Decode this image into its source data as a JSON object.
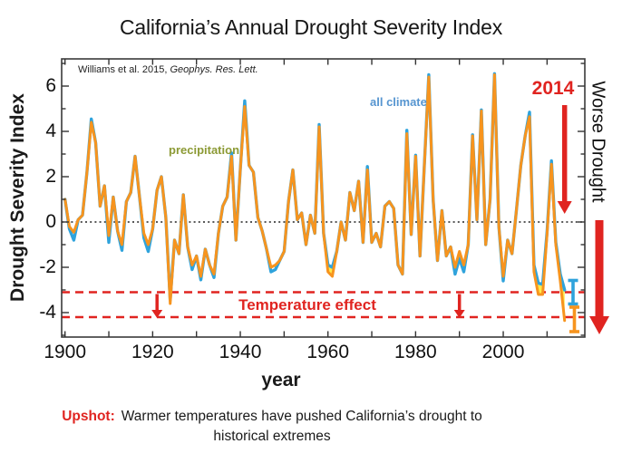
{
  "figure": {
    "title": "California’s Annual Drought Severity Index",
    "citation_plain": "Williams et al. 2015, ",
    "citation_italic": "Geophys. Res. Lett.",
    "upshot_lead": "Upshot:",
    "upshot_text": "Warmer temperatures have pushed California’s drought to",
    "upshot_text2": "historical extremes"
  },
  "axes": {
    "x_label": "year",
    "y_label": "Drought Severity Index",
    "x_tick_labels": [
      "1900",
      "1920",
      "1940",
      "1960",
      "1980",
      "2000"
    ],
    "y_tick_labels": [
      "6",
      "4",
      "2",
      "0",
      "-2",
      "-4"
    ]
  },
  "annotations": {
    "precipitation_label": "precipitation",
    "all_climate_label": "all climate",
    "year_2014_label": "2014",
    "worse_drought_label": "Worse Drought",
    "temperature_effect_label": "Temperature effect"
  },
  "colors": {
    "blue_line": "#2FA3DC",
    "orange_line": "#F7941E",
    "yellow_fill": "#FFE94A",
    "olive_label": "#8C9A35",
    "blue_label": "#5695D0",
    "red_annotation": "#E02420",
    "text": "#1A1A1A"
  },
  "chart_data": {
    "type": "line",
    "title": "California's Annual Drought Severity Index",
    "xlabel": "year",
    "ylabel": "Drought Severity Index",
    "x_range_years": [
      1900,
      2014
    ],
    "ylim": [
      -5.1,
      7.2
    ],
    "x_axis_ticks": [
      1900,
      1920,
      1940,
      1960,
      1980,
      2000
    ],
    "x_minor_tick_step_years": 10,
    "y_axis_ticks": [
      6,
      4,
      2,
      0,
      -2,
      -4
    ],
    "grid": false,
    "legend_position": "in-plot text labels",
    "series": [
      {
        "name": "all climate",
        "color": "#2FA3DC",
        "year_start": 1900,
        "annual_values": [
          1.0,
          -0.3,
          -0.8,
          0.1,
          0.3,
          2.2,
          4.55,
          3.5,
          0.7,
          1.6,
          -0.9,
          1.1,
          -0.4,
          -1.25,
          0.9,
          1.3,
          2.9,
          1.1,
          -0.7,
          -1.3,
          -0.3,
          1.4,
          2.0,
          0.2,
          -3.45,
          -0.8,
          -1.4,
          1.2,
          -1.1,
          -2.1,
          -1.5,
          -2.55,
          -1.2,
          -1.9,
          -2.45,
          -0.5,
          0.7,
          1.1,
          3.05,
          -0.8,
          2.3,
          5.35,
          2.5,
          2.2,
          0.2,
          -0.4,
          -1.2,
          -2.2,
          -2.1,
          -1.7,
          -1.3,
          0.9,
          2.3,
          0.1,
          0.4,
          -1.0,
          0.3,
          -0.5,
          4.3,
          -0.5,
          -1.9,
          -2.0,
          -1.3,
          0.0,
          -0.8,
          1.3,
          0.5,
          1.8,
          -0.9,
          2.45,
          -0.9,
          -0.5,
          -1.1,
          0.7,
          0.9,
          0.6,
          -1.9,
          -2.3,
          4.05,
          -0.55,
          2.95,
          -1.5,
          2.5,
          6.5,
          1.0,
          -1.7,
          0.5,
          -1.5,
          -1.1,
          -2.3,
          -1.6,
          -2.2,
          -1.0,
          3.85,
          0.1,
          4.95,
          -1.0,
          1.0,
          6.55,
          -0.2,
          -2.6,
          -0.8,
          -1.4,
          0.5,
          2.5,
          3.8,
          4.85,
          -1.9,
          -2.7,
          -2.75,
          -0.4,
          2.7,
          -0.9,
          -2.3,
          -3.0
        ]
      },
      {
        "name": "precipitation",
        "color": "#F7941E",
        "year_start": 1900,
        "annual_values": [
          1.0,
          -0.2,
          -0.45,
          0.1,
          0.3,
          2.2,
          4.4,
          3.5,
          0.7,
          1.6,
          -0.6,
          1.1,
          -0.4,
          -1.0,
          0.9,
          1.3,
          2.9,
          1.1,
          -0.5,
          -1.0,
          -0.3,
          1.4,
          2.0,
          0.2,
          -3.6,
          -0.8,
          -1.4,
          1.2,
          -1.1,
          -1.9,
          -1.5,
          -2.4,
          -1.2,
          -1.9,
          -2.3,
          -0.5,
          0.7,
          1.1,
          2.9,
          -0.8,
          2.3,
          5.1,
          2.5,
          2.2,
          0.2,
          -0.4,
          -1.2,
          -2.0,
          -1.9,
          -1.7,
          -1.3,
          0.9,
          2.3,
          0.1,
          0.4,
          -1.0,
          0.3,
          -0.5,
          4.2,
          -0.5,
          -2.2,
          -2.4,
          -1.3,
          0.0,
          -0.8,
          1.3,
          0.5,
          1.8,
          -0.9,
          2.3,
          -0.9,
          -0.5,
          -1.1,
          0.7,
          0.9,
          0.6,
          -1.9,
          -2.3,
          3.9,
          -0.55,
          2.9,
          -1.5,
          2.5,
          6.4,
          1.0,
          -1.7,
          0.5,
          -1.5,
          -1.1,
          -2.0,
          -1.3,
          -1.9,
          -1.0,
          3.8,
          0.1,
          4.9,
          -1.0,
          1.0,
          6.5,
          -0.2,
          -2.4,
          -0.8,
          -1.4,
          0.5,
          2.5,
          3.8,
          4.65,
          -2.2,
          -3.2,
          -3.2,
          -0.5,
          2.55,
          -1.0,
          -2.6,
          -4.35
        ]
      }
    ],
    "fill_between_segments": [
      [
        1959,
        1962
      ],
      [
        2006,
        2010
      ],
      [
        2012,
        2014
      ]
    ],
    "reference_lines": [
      {
        "style": "dotted",
        "value": 0,
        "color": "#222222"
      },
      {
        "style": "dashed",
        "value": -3.1,
        "color": "#E02420"
      },
      {
        "style": "dashed",
        "value": -4.2,
        "color": "#E02420"
      }
    ],
    "error_bars_2014": [
      {
        "series": "all climate",
        "center": -3.1,
        "half_range": 0.5,
        "color": "#2FA3DC"
      },
      {
        "series": "precipitation",
        "center": -4.3,
        "half_range": 0.55,
        "color": "#F7941E"
      }
    ],
    "arrows": [
      {
        "name": "temperature-effect-arrow-1921",
        "x_year": 1921,
        "from_value": -3.1,
        "to_value": -4.2,
        "color": "#E02420"
      },
      {
        "name": "temperature-effect-arrow-1990",
        "x_year": 1990,
        "from_value": -3.1,
        "to_value": -4.2,
        "color": "#E02420"
      },
      {
        "name": "arrow-2014",
        "x_year": 2014,
        "from_value": 5.2,
        "to_value": 0.4,
        "color": "#E02420"
      },
      {
        "name": "worse-drought-arrow",
        "outside_right": true,
        "from_value": 0.1,
        "to_value": -5.0,
        "color": "#E02420"
      }
    ]
  }
}
